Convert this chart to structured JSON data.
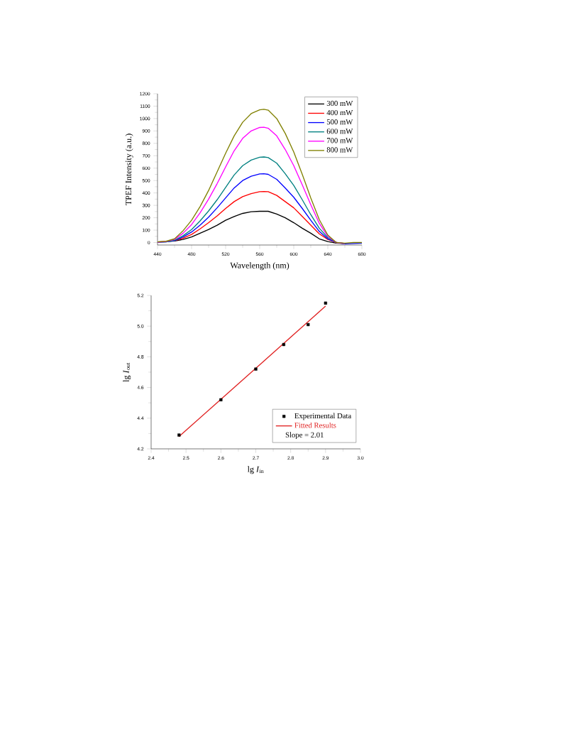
{
  "chart_data": [
    {
      "type": "line",
      "xlabel": "Wavelength (nm)",
      "ylabel": "TPEF Intensity (a.u.)",
      "x": [
        440,
        450,
        460,
        470,
        480,
        490,
        500,
        510,
        520,
        530,
        540,
        550,
        560,
        565,
        570,
        580,
        590,
        600,
        610,
        620,
        630,
        640,
        650,
        660,
        670,
        680
      ],
      "xlim": [
        440,
        680
      ],
      "ylim": [
        -20,
        1200
      ],
      "xticks": [
        440,
        480,
        520,
        560,
        600,
        640,
        680
      ],
      "yticks": [
        0,
        100,
        200,
        300,
        400,
        500,
        600,
        700,
        800,
        900,
        1000,
        1100,
        1200
      ],
      "legend": "top right",
      "grid": false,
      "marker": "none",
      "line_style": "solid",
      "series": [
        {
          "name": "300 mW",
          "color": "#000000",
          "values": [
            5,
            8,
            12,
            25,
            45,
            75,
            105,
            140,
            180,
            210,
            235,
            248,
            252,
            253,
            252,
            230,
            200,
            160,
            115,
            75,
            30,
            8,
            -5,
            -8,
            null,
            null
          ]
        },
        {
          "name": "400 mW",
          "color": "#ff0000",
          "values": [
            5,
            8,
            15,
            35,
            65,
            110,
            160,
            215,
            275,
            330,
            370,
            395,
            410,
            412,
            410,
            380,
            330,
            280,
            210,
            140,
            70,
            25,
            0,
            -8,
            null,
            null
          ]
        },
        {
          "name": "500 mW",
          "color": "#0000ff",
          "values": [
            3,
            5,
            15,
            45,
            85,
            140,
            205,
            280,
            360,
            440,
            500,
            535,
            553,
            555,
            550,
            510,
            440,
            365,
            275,
            180,
            90,
            30,
            0,
            -10,
            -8,
            -5
          ]
        },
        {
          "name": "600 mW",
          "color": "#008080",
          "values": [
            3,
            5,
            18,
            55,
            105,
            175,
            255,
            345,
            445,
            545,
            620,
            665,
            688,
            690,
            685,
            640,
            555,
            460,
            345,
            225,
            115,
            40,
            0,
            -8,
            null,
            null
          ]
        },
        {
          "name": "700 mW",
          "color": "#ff00ff",
          "values": [
            3,
            8,
            25,
            75,
            145,
            240,
            350,
            475,
            610,
            740,
            840,
            900,
            928,
            930,
            922,
            860,
            750,
            620,
            465,
            305,
            155,
            50,
            0,
            -8,
            null,
            null
          ]
        },
        {
          "name": "800 mW",
          "color": "#808000",
          "values": [
            5,
            10,
            30,
            95,
            180,
            290,
            420,
            570,
            720,
            860,
            970,
            1040,
            1070,
            1075,
            1068,
            1000,
            880,
            730,
            550,
            360,
            185,
            60,
            0,
            -5,
            0,
            0
          ]
        }
      ]
    },
    {
      "type": "scatter",
      "xlabel": "lg *I*$_{in}$",
      "ylabel": "lg *I*$_{out}$",
      "xlim": [
        2.4,
        3.0
      ],
      "ylim": [
        4.2,
        5.2
      ],
      "xticks": [
        {
          "value": 2.4,
          "label": "2.4"
        },
        {
          "value": 2.5,
          "label": "2.5"
        },
        {
          "value": 2.6,
          "label": "2.6"
        },
        {
          "value": 2.7,
          "label": "2.7"
        },
        {
          "value": 2.8,
          "label": "2.8"
        },
        {
          "value": 2.9,
          "label": "2.9"
        },
        {
          "value": 3.0,
          "label": "3.0"
        }
      ],
      "yticks": [
        {
          "value": 4.2,
          "label": "4.2"
        },
        {
          "value": 4.4,
          "label": "4.4"
        },
        {
          "value": 4.6,
          "label": "4.6"
        },
        {
          "value": 4.8,
          "label": "4.8"
        },
        {
          "value": 5.0,
          "label": "5.0"
        },
        {
          "value": 5.2,
          "label": "5.2"
        }
      ],
      "legend": "bottom right",
      "grid": false,
      "annotations": [
        "Slope = 2.01"
      ],
      "series": [
        {
          "name": "Experimental Data",
          "type": "scatter",
          "marker": "square",
          "color": "#000000",
          "x": [
            2.48,
            2.6,
            2.7,
            2.78,
            2.85,
            2.9
          ],
          "values": [
            4.29,
            4.52,
            4.72,
            4.88,
            5.01,
            5.15
          ]
        },
        {
          "name": "Fitted Results",
          "type": "line",
          "marker": "none",
          "line_style": "solid",
          "color": "#e02020",
          "x": [
            2.48,
            2.9
          ],
          "values": [
            4.28,
            5.13
          ]
        }
      ]
    }
  ]
}
